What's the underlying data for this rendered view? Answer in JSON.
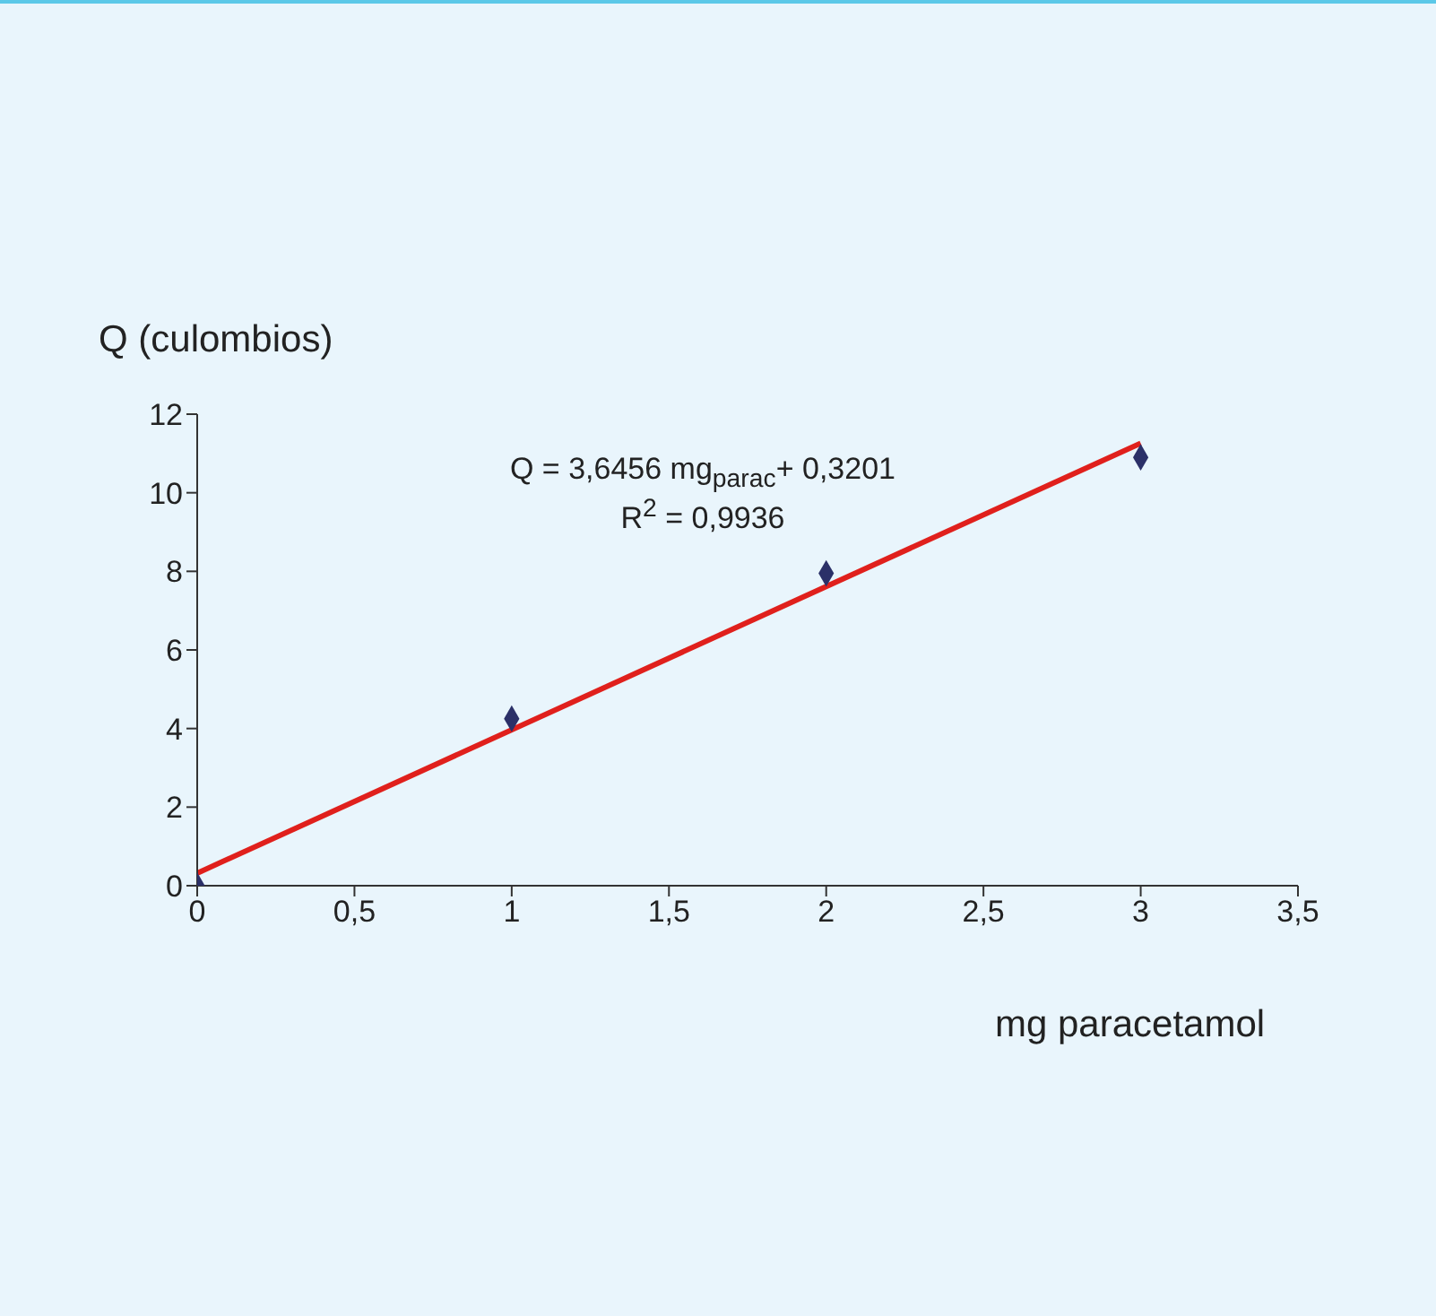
{
  "chart_data": {
    "type": "scatter",
    "xlabel": "mg paracetamol",
    "ylabel": "Q (culombios)",
    "annotations": [
      "Q = 3,6456 mg$_{parac}$+ 0,3201",
      "R$^{2}$ = 0,9936"
    ],
    "xlim": [
      0,
      3.5
    ],
    "xticks": [
      0,
      {
        "value": 0.5,
        "label": "0,5"
      },
      1,
      {
        "value": 1.5,
        "label": "1,5"
      },
      2,
      {
        "value": 2.5,
        "label": "2,5"
      },
      3,
      {
        "value": 3.5,
        "label": "3,5"
      }
    ],
    "ylim": [
      0,
      12
    ],
    "yticks": [
      0,
      2,
      4,
      6,
      8,
      10,
      12
    ],
    "series": [
      {
        "type": "scatter",
        "color": "#2b3068",
        "marker": "diamond",
        "x": [
          0,
          1,
          2,
          3
        ],
        "values": [
          0,
          4.25,
          7.95,
          10.9
        ]
      },
      {
        "type": "line",
        "color": "#e0201c",
        "marker": "none",
        "line_style": "solid",
        "x": [
          0,
          3
        ],
        "values": [
          0.32,
          11.26
        ]
      }
    ]
  }
}
